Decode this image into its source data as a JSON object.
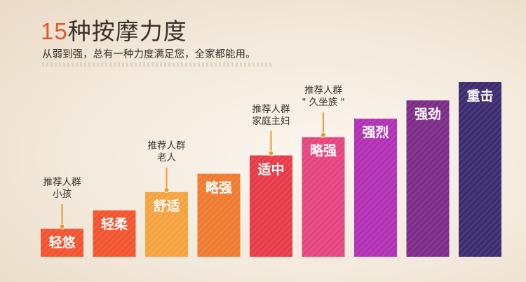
{
  "header": {
    "title_number": "15",
    "title_text": "种按摩力度",
    "subtitle": "从弱到强，总有一种力度满足您，全家都能用。"
  },
  "chart_data": {
    "type": "bar",
    "categories": [
      "轻悠",
      "轻柔",
      "舒适",
      "略强",
      "适中",
      "略强",
      "强烈",
      "强劲",
      "重击"
    ],
    "values": [
      1,
      2,
      3,
      4,
      5,
      6,
      7,
      8,
      9
    ],
    "ylim": [
      0,
      9
    ],
    "colors": [
      "#f2532e",
      "#f2532e",
      "#f5a23e",
      "#ee7a2f",
      "#e63a47",
      "#e5437f",
      "#b12fb3",
      "#7a2a86",
      "#3b2a6f"
    ],
    "annotations": [
      {
        "bar": 0,
        "lines": [
          "推荐人群",
          "小孩"
        ]
      },
      {
        "bar": 2,
        "lines": [
          "推荐人群",
          "老人"
        ]
      },
      {
        "bar": 4,
        "lines": [
          "推荐人群",
          "家庭主妇"
        ]
      },
      {
        "bar": 5,
        "lines": [
          "推荐人群",
          "\" 久坐族 \""
        ]
      }
    ],
    "grid": false,
    "legend": "none"
  }
}
